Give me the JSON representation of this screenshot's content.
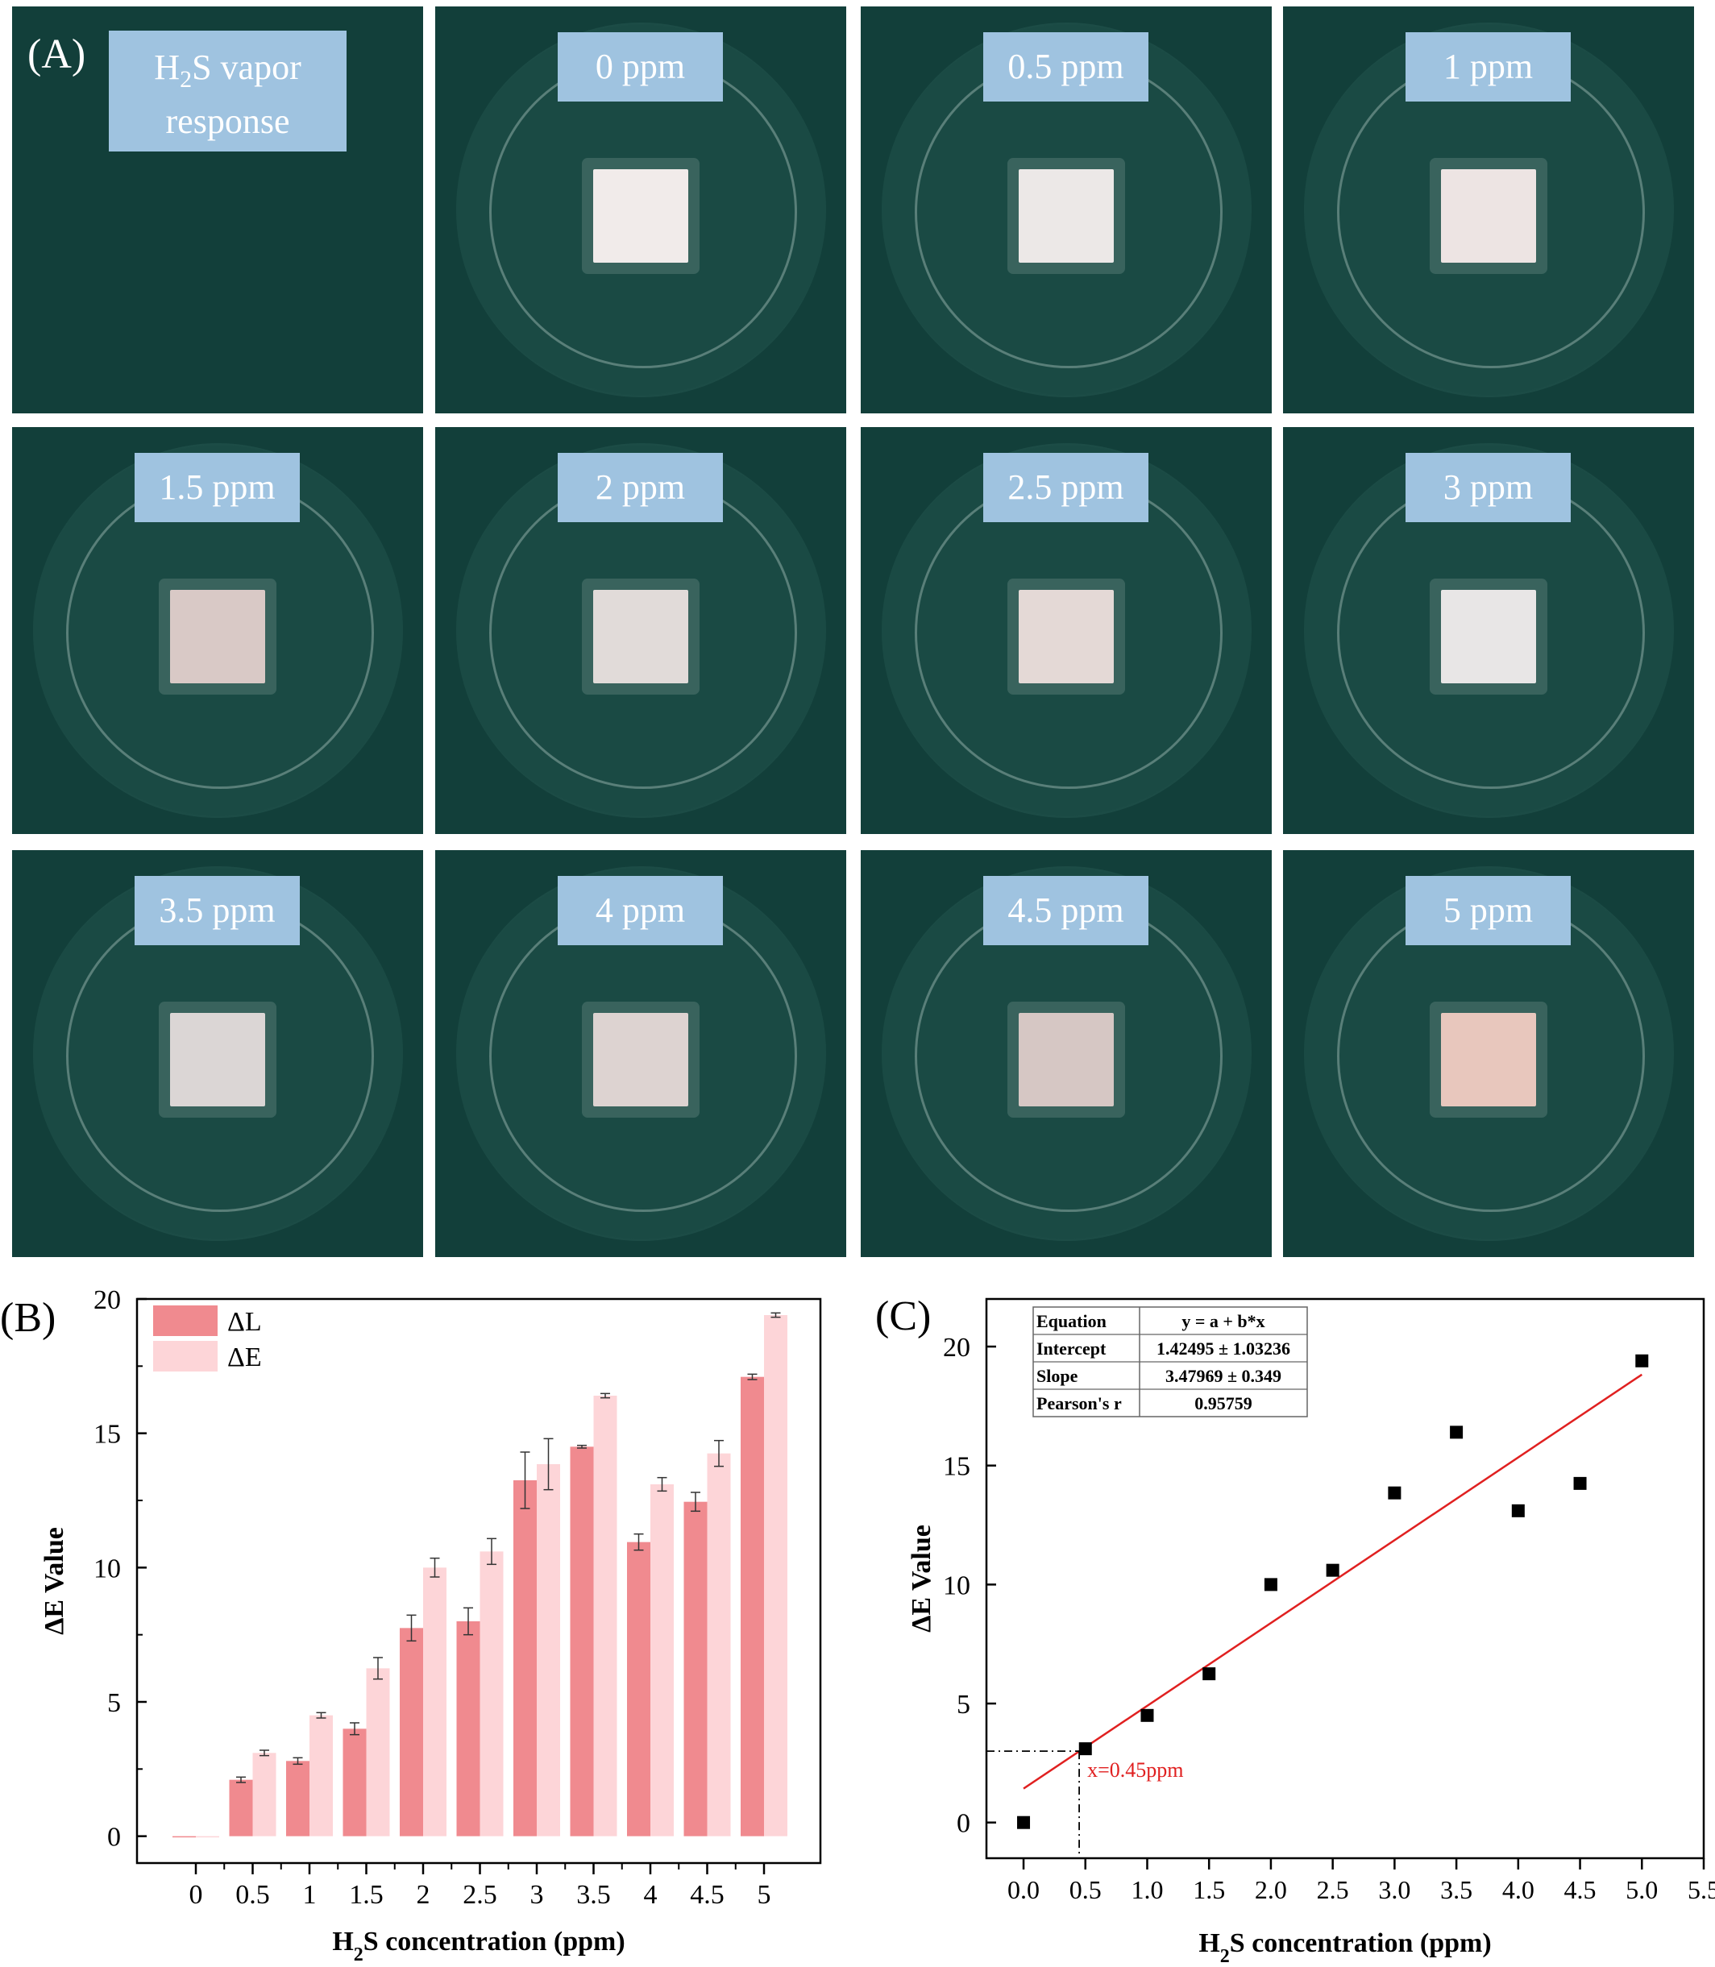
{
  "panel_a": {
    "letter": "(A)",
    "title_line1_pre": "H",
    "title_line1_sub": "2",
    "title_line1_post": "S vapor",
    "title_line2": "response",
    "tiles": [
      {
        "label": "0 ppm",
        "paper_color": "#f1ebea"
      },
      {
        "label": "0.5 ppm",
        "paper_color": "#ece8e7"
      },
      {
        "label": "1 ppm",
        "paper_color": "#ede4e3"
      },
      {
        "label": "1.5 ppm",
        "paper_color": "#d9c9c6"
      },
      {
        "label": "2 ppm",
        "paper_color": "#e1dbd9"
      },
      {
        "label": "2.5 ppm",
        "paper_color": "#e4d9d6"
      },
      {
        "label": "3 ppm",
        "paper_color": "#e8e6e6"
      },
      {
        "label": "3.5 ppm",
        "paper_color": "#dbd6d5"
      },
      {
        "label": "4 ppm",
        "paper_color": "#ddd3d1"
      },
      {
        "label": "4.5 ppm",
        "paper_color": "#d6c7c4"
      },
      {
        "label": "5 ppm",
        "paper_color": "#e8c7bd"
      }
    ]
  },
  "chart_data": [
    {
      "panel": "(B)",
      "type": "bar",
      "categories": [
        "0",
        "0.5",
        "1",
        "1.5",
        "2",
        "2.5",
        "3",
        "3.5",
        "4",
        "4.5",
        "5"
      ],
      "series": [
        {
          "name": "ΔL",
          "color": "#f08a8f",
          "values": [
            0,
            2.1,
            2.8,
            4.0,
            7.75,
            8.0,
            13.25,
            14.5,
            10.95,
            12.45,
            17.1
          ],
          "errors": [
            0,
            0.1,
            0.12,
            0.22,
            0.48,
            0.5,
            1.05,
            0.05,
            0.3,
            0.35,
            0.1
          ]
        },
        {
          "name": "ΔE",
          "color": "#fdd5d8",
          "values": [
            0,
            3.1,
            4.5,
            6.25,
            10.0,
            10.6,
            13.85,
            16.4,
            13.1,
            14.25,
            19.4
          ],
          "errors": [
            0,
            0.1,
            0.1,
            0.4,
            0.35,
            0.48,
            0.95,
            0.08,
            0.25,
            0.48,
            0.08
          ]
        }
      ],
      "xlabel_pre": "H",
      "xlabel_sub": "2",
      "xlabel_post": "S concentration (ppm)",
      "ylabel": "ΔE Value",
      "ylim": [
        -1,
        20
      ],
      "yticks": [
        0,
        5,
        10,
        15,
        20
      ],
      "legend": "top-left",
      "grid": false
    },
    {
      "panel": "(C)",
      "type": "scatter",
      "x": [
        0.0,
        0.5,
        1.0,
        1.5,
        2.0,
        2.5,
        3.0,
        3.5,
        4.0,
        4.5,
        5.0
      ],
      "y": [
        0.0,
        3.1,
        4.5,
        6.25,
        10.0,
        10.6,
        13.85,
        16.4,
        13.1,
        14.25,
        19.4
      ],
      "fit": {
        "intercept": 1.42495,
        "slope": 3.47969,
        "color": "#e02020"
      },
      "annotation": {
        "text": "x=0.45ppm",
        "x": 0.45,
        "y": 3.0
      },
      "table": {
        "rows": [
          [
            "Equation",
            "y = a + b*x"
          ],
          [
            "Intercept",
            "1.42495 ± 1.03236"
          ],
          [
            "Slope",
            "3.47969 ± 0.349"
          ],
          [
            "Pearson's r",
            "0.95759"
          ]
        ]
      },
      "xlabel_pre": "H",
      "xlabel_sub": "2",
      "xlabel_post": "S concentration (ppm)",
      "ylabel": "ΔE Value",
      "xlim": [
        -0.3,
        5.5
      ],
      "ylim": [
        -1.5,
        22
      ],
      "xticks": [
        "0.0",
        "0.5",
        "1.0",
        "1.5",
        "2.0",
        "2.5",
        "3.0",
        "3.5",
        "4.0",
        "4.5",
        "5.0",
        "5.5"
      ],
      "yticks": [
        0,
        5,
        10,
        15,
        20
      ],
      "grid": false
    }
  ]
}
